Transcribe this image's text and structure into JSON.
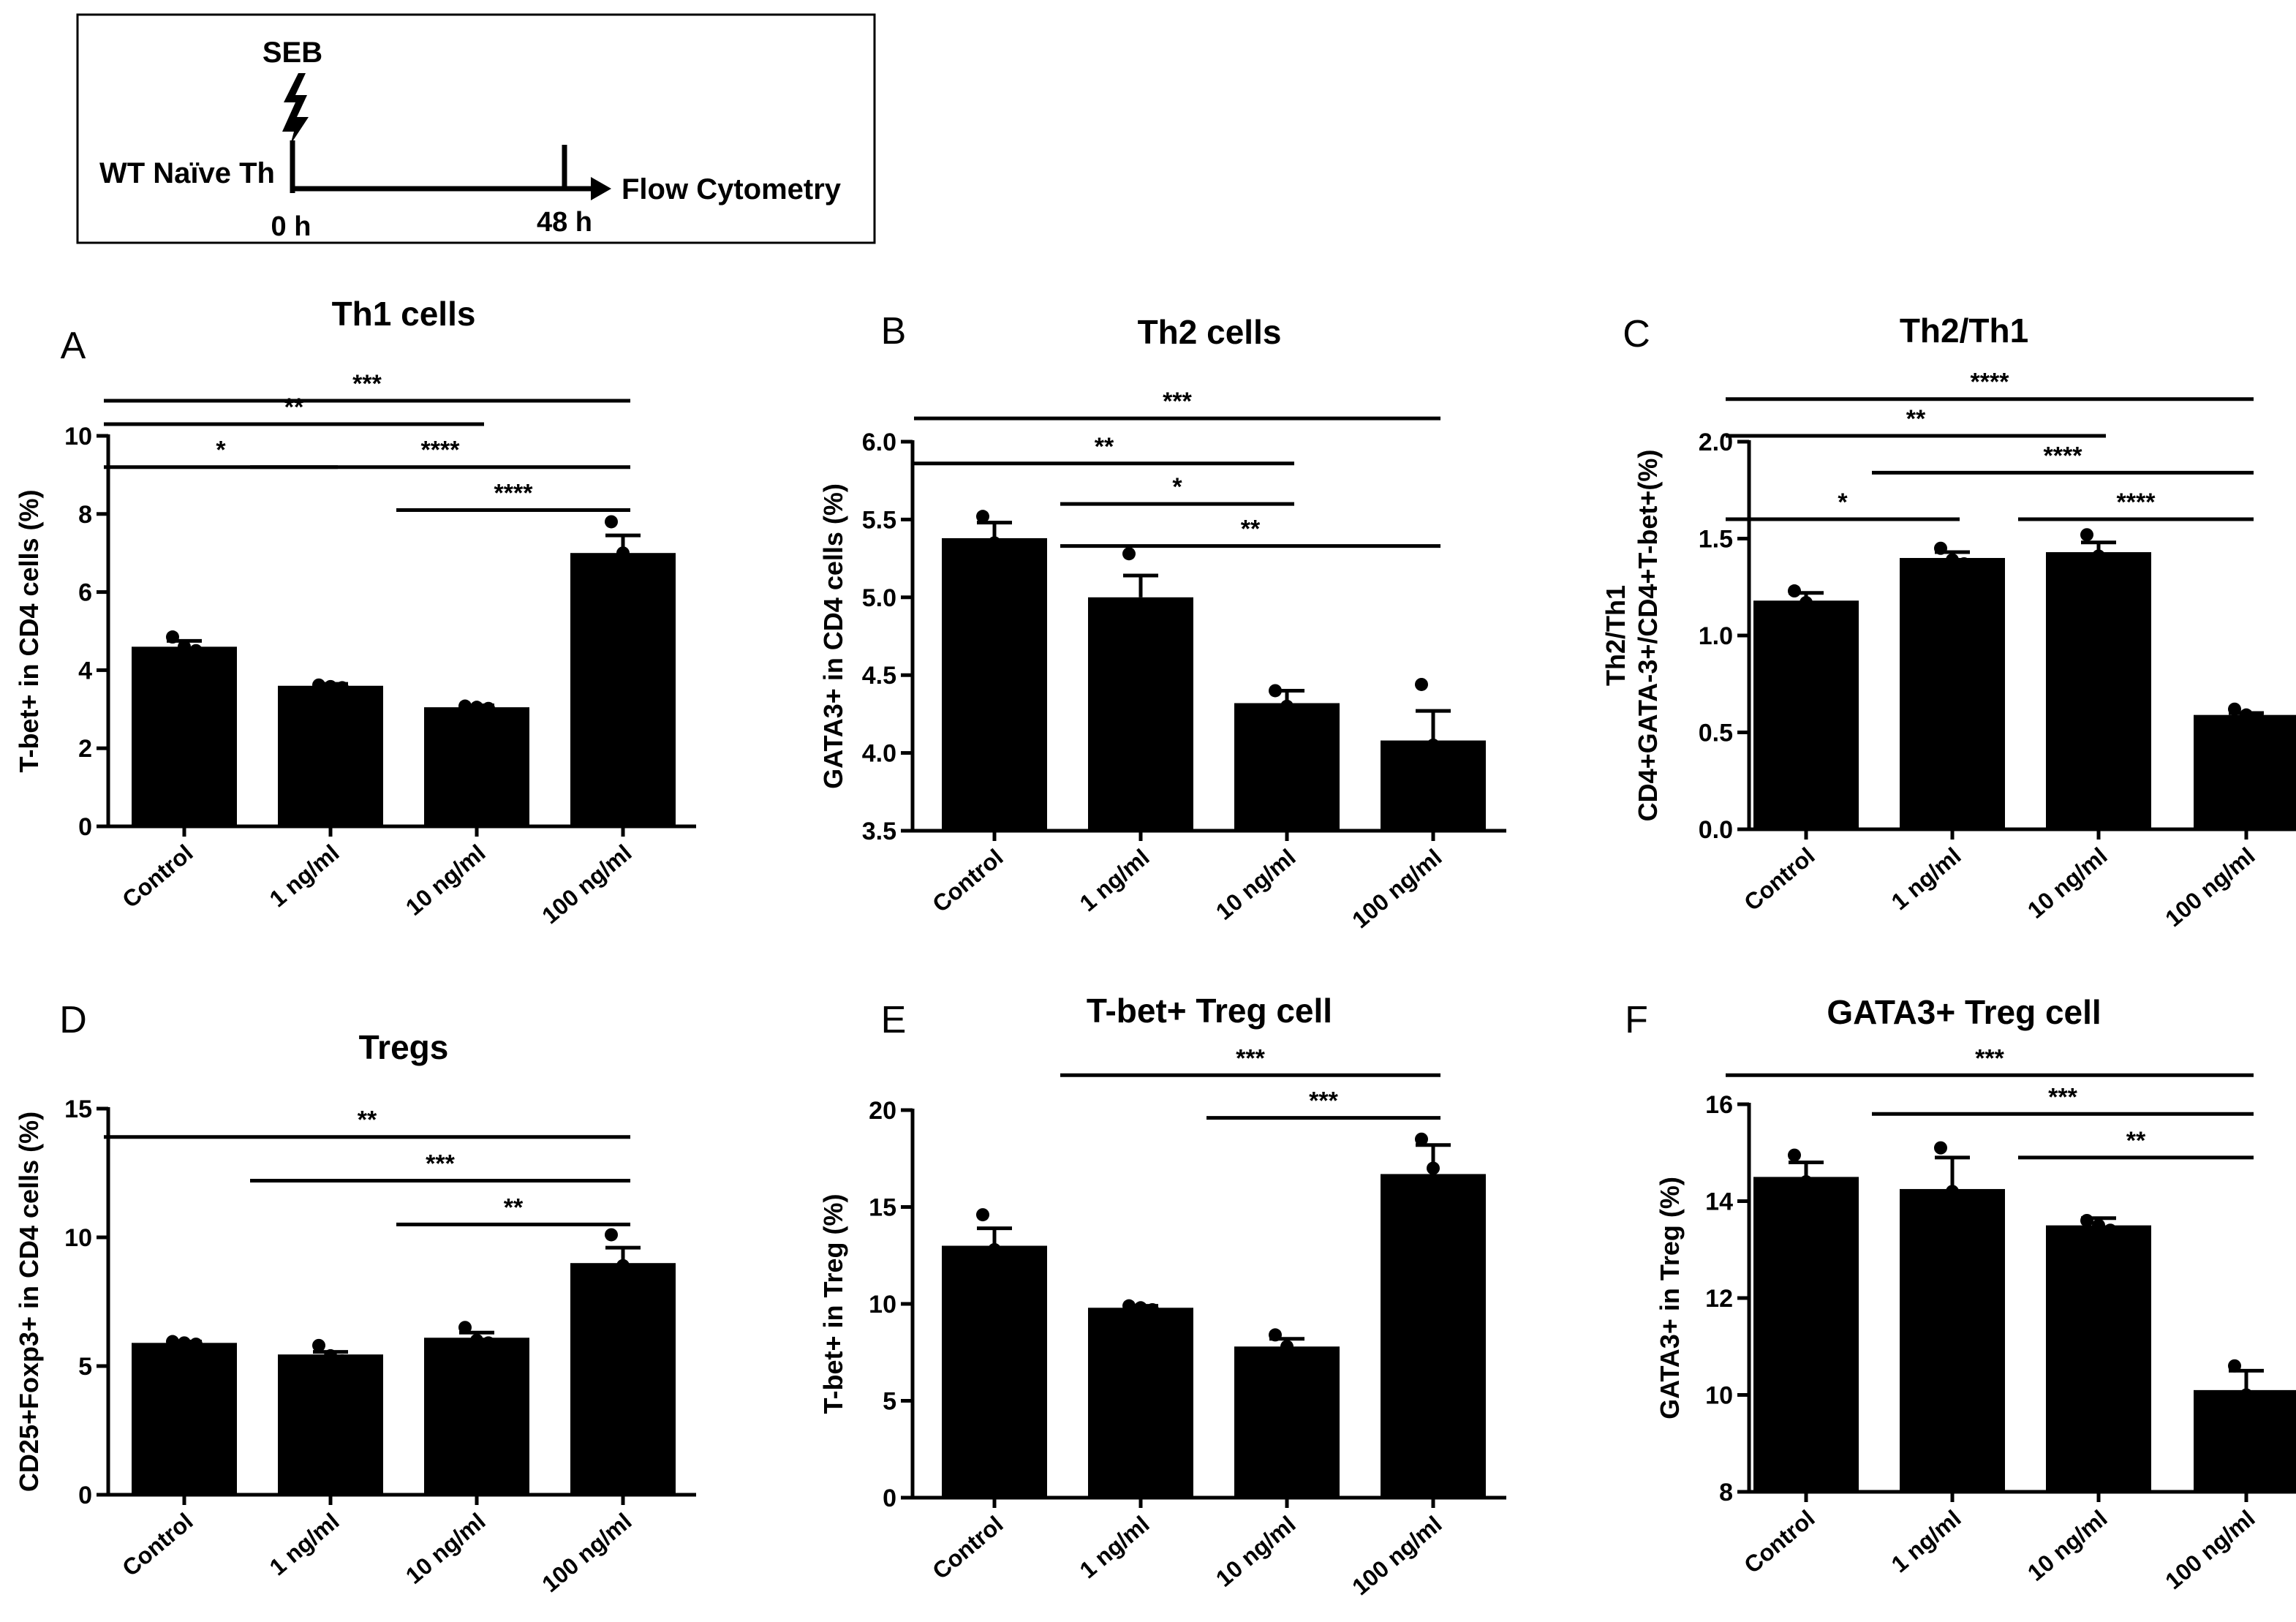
{
  "schematic": {
    "stimulus": "SEB",
    "cell_label": "WT Naïve Th",
    "readout": "Flow Cytometry",
    "t0": "0 h",
    "t1": "48 h"
  },
  "chart_data": [
    {
      "type": "bar",
      "letter": "A",
      "title": "Th1 cells",
      "categories": [
        "Control",
        "1 ng/ml",
        "10 ng/ml",
        "100 ng/ml"
      ],
      "values": [
        4.6,
        3.6,
        3.05,
        7.0
      ],
      "errors": [
        0.15,
        0.05,
        0.05,
        0.45
      ],
      "points": [
        [
          4.85,
          4.6,
          4.5
        ],
        [
          3.62,
          3.58,
          3.55
        ],
        [
          3.08,
          3.05,
          3.02
        ],
        [
          7.8,
          7.0,
          6.3
        ]
      ],
      "ylabel": "T-bet+ in CD4 cells (%)",
      "ylim": [
        0,
        10
      ],
      "yticks": [
        0,
        2,
        4,
        6,
        8,
        10
      ],
      "ytick_labels": [
        "0",
        "2",
        "4",
        "6",
        "8",
        "10"
      ],
      "significance": [
        {
          "from": 0,
          "to": 3,
          "label": "***",
          "level": 10.9
        },
        {
          "from": 0,
          "to": 2,
          "label": "**",
          "level": 10.3
        },
        {
          "from": 0,
          "to": 1,
          "label": "*",
          "level": 9.2
        },
        {
          "from": 1,
          "to": 3,
          "label": "****",
          "level": 9.2
        },
        {
          "from": 2,
          "to": 3,
          "label": "****",
          "level": 8.1
        }
      ]
    },
    {
      "type": "bar",
      "letter": "B",
      "title": "Th2 cells",
      "categories": [
        "Control",
        "1 ng/ml",
        "10 ng/ml",
        "100 ng/ml"
      ],
      "values": [
        5.38,
        5.0,
        4.32,
        4.08
      ],
      "errors": [
        0.1,
        0.14,
        0.08,
        0.19
      ],
      "points": [
        [
          5.52,
          5.35,
          5.28
        ],
        [
          5.28,
          4.95,
          4.8
        ],
        [
          4.4,
          4.3,
          4.26
        ],
        [
          4.44,
          4.05,
          3.8
        ]
      ],
      "ylabel": "GATA3+ in CD4 cells (%)",
      "ylim": [
        3.5,
        6.0
      ],
      "yticks": [
        3.5,
        4.0,
        4.5,
        5.0,
        5.5,
        6.0
      ],
      "ytick_labels": [
        "3.5",
        "4.0",
        "4.5",
        "5.0",
        "5.5",
        "6.0"
      ],
      "significance": [
        {
          "from": 0,
          "to": 3,
          "label": "***",
          "level": 6.15
        },
        {
          "from": 0,
          "to": 2,
          "label": "**",
          "level": 5.86
        },
        {
          "from": 1,
          "to": 2,
          "label": "*",
          "level": 5.6
        },
        {
          "from": 1,
          "to": 3,
          "label": "**",
          "level": 5.33
        }
      ]
    },
    {
      "type": "bar",
      "letter": "C",
      "title": "Th2/Th1",
      "categories": [
        "Control",
        "1 ng/ml",
        "10 ng/ml",
        "100 ng/ml"
      ],
      "values": [
        1.18,
        1.4,
        1.43,
        0.59
      ],
      "errors": [
        0.04,
        0.03,
        0.05,
        0.01
      ],
      "points": [
        [
          1.23,
          1.17,
          1.14
        ],
        [
          1.45,
          1.39,
          1.37
        ],
        [
          1.52,
          1.41,
          1.38
        ],
        [
          0.62,
          0.59,
          0.57
        ]
      ],
      "ylabel_lines": [
        "Th2/Th1",
        "CD4+GATA-3+/CD4+T-bet+(%)"
      ],
      "ylim": [
        0,
        2.0
      ],
      "yticks": [
        0,
        0.5,
        1.0,
        1.5,
        2.0
      ],
      "ytick_labels": [
        "0.0",
        "0.5",
        "1.0",
        "1.5",
        "2.0"
      ],
      "significance": [
        {
          "from": 0,
          "to": 3,
          "label": "****",
          "level": 2.22
        },
        {
          "from": 0,
          "to": 2,
          "label": "**",
          "level": 2.03
        },
        {
          "from": 0,
          "to": 1,
          "label": "*",
          "level": 1.6
        },
        {
          "from": 1,
          "to": 3,
          "label": "****",
          "level": 1.84
        },
        {
          "from": 2,
          "to": 3,
          "label": "****",
          "level": 1.6
        }
      ]
    },
    {
      "type": "bar",
      "letter": "D",
      "title": "Tregs",
      "categories": [
        "Control",
        "1 ng/ml",
        "10 ng/ml",
        "100 ng/ml"
      ],
      "values": [
        5.9,
        5.45,
        6.1,
        9.0
      ],
      "errors": [
        0.05,
        0.1,
        0.2,
        0.6
      ],
      "points": [
        [
          5.95,
          5.9,
          5.85
        ],
        [
          5.8,
          5.4,
          5.2
        ],
        [
          6.5,
          6.0,
          5.9
        ],
        [
          10.1,
          8.9,
          8.2
        ]
      ],
      "ylabel": "CD25+Foxp3+ in CD4 cells (%)",
      "ylim": [
        0,
        15
      ],
      "yticks": [
        0,
        5,
        10,
        15
      ],
      "ytick_labels": [
        "0",
        "5",
        "10",
        "15"
      ],
      "significance": [
        {
          "from": 0,
          "to": 3,
          "label": "**",
          "level": 13.9
        },
        {
          "from": 1,
          "to": 3,
          "label": "***",
          "level": 12.2
        },
        {
          "from": 2,
          "to": 3,
          "label": "**",
          "level": 10.5
        }
      ]
    },
    {
      "type": "bar",
      "letter": "E",
      "title": "T-bet+ Treg cell",
      "categories": [
        "Control",
        "1 ng/ml",
        "10 ng/ml",
        "100 ng/ml"
      ],
      "values": [
        13.0,
        9.8,
        7.8,
        16.7
      ],
      "errors": [
        0.9,
        0.1,
        0.4,
        1.5
      ],
      "points": [
        [
          14.6,
          12.8,
          11.7
        ],
        [
          9.9,
          9.8,
          9.7
        ],
        [
          8.4,
          7.8,
          7.2
        ],
        [
          18.5,
          17.0,
          15.2
        ]
      ],
      "ylabel": "T-bet+ in Treg (%)",
      "ylim": [
        0,
        20
      ],
      "yticks": [
        0,
        5,
        10,
        15,
        20
      ],
      "ytick_labels": [
        "0",
        "5",
        "10",
        "15",
        "20"
      ],
      "significance": [
        {
          "from": 1,
          "to": 3,
          "label": "***",
          "level": 21.8
        },
        {
          "from": 2,
          "to": 3,
          "label": "***",
          "level": 19.6
        }
      ]
    },
    {
      "type": "bar",
      "letter": "F",
      "title": "GATA3+ Treg cell",
      "categories": [
        "Control",
        "1 ng/ml",
        "10 ng/ml",
        "100 ng/ml"
      ],
      "values": [
        14.5,
        14.25,
        13.5,
        10.1
      ],
      "errors": [
        0.3,
        0.65,
        0.15,
        0.4
      ],
      "points": [
        [
          14.95,
          14.4,
          14.2
        ],
        [
          15.1,
          14.2,
          13.5
        ],
        [
          13.6,
          13.5,
          13.4
        ],
        [
          10.6,
          10.0,
          9.7
        ]
      ],
      "ylabel": "GATA3+ in Treg (%)",
      "ylim": [
        8,
        16
      ],
      "yticks": [
        8,
        10,
        12,
        14,
        16
      ],
      "ytick_labels": [
        "8",
        "10",
        "12",
        "14",
        "16"
      ],
      "significance": [
        {
          "from": 0,
          "to": 3,
          "label": "***",
          "level": 16.6
        },
        {
          "from": 1,
          "to": 3,
          "label": "***",
          "level": 15.8
        },
        {
          "from": 2,
          "to": 3,
          "label": "**",
          "level": 14.9
        }
      ]
    }
  ]
}
